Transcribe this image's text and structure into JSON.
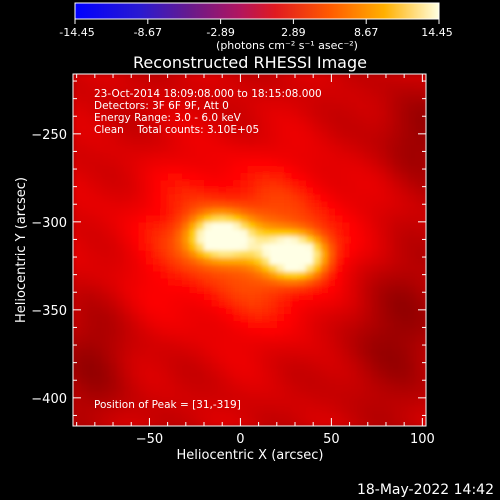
{
  "colorbar": {
    "ticks": [
      "-14.45",
      "-8.67",
      "-2.89",
      "2.89",
      "8.67",
      "14.45"
    ],
    "unit_html": "(photons cm⁻² s⁻¹ asec⁻²)"
  },
  "chart_data": {
    "type": "heatmap",
    "title": "Reconstructed RHESSI Image",
    "xlabel": "Heliocentric X (arcsec)",
    "ylabel": "Heliocentric Y (arcsec)",
    "xlim": [
      -92,
      102
    ],
    "ylim": [
      -416,
      -216
    ],
    "x_ticks": [
      -50,
      0,
      50,
      100
    ],
    "y_ticks": [
      -250,
      -300,
      -350,
      -400
    ],
    "colormap": "red-temperature",
    "sources": [
      {
        "x": -12,
        "y": -308,
        "peak": 14.45
      },
      {
        "x": 31,
        "y": -319,
        "peak": 14.45
      }
    ],
    "annotations": [
      "23-Oct-2014 18:09:08.000 to 18:15:08.000",
      "Detectors: 3F 6F 9F, Att 0",
      "Energy Range: 3.0 - 6.0 keV",
      "Clean    Total counts: 3.10E+05"
    ],
    "peak_text": "Position of Peak = [31,-319]"
  },
  "footer": {
    "timestamp": "18-May-2022 14:42"
  }
}
